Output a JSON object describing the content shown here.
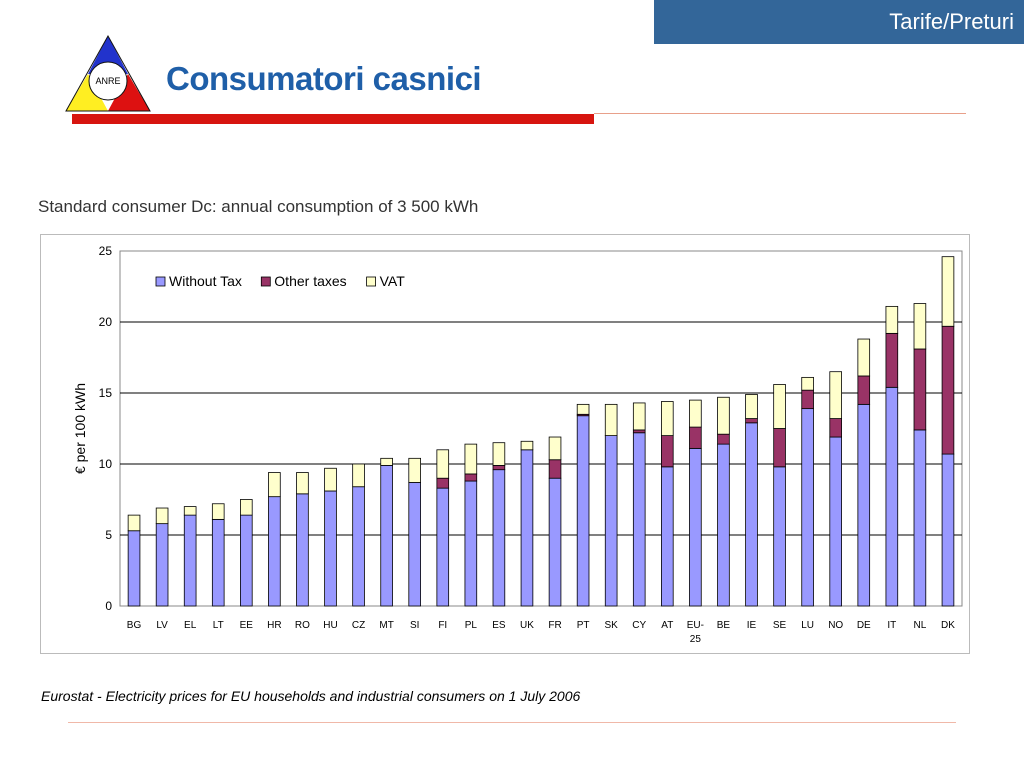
{
  "header": {
    "section_tab": "Tarife/Preturi",
    "logo_text": "ANRE",
    "title": "Consumatori casnici"
  },
  "chart_heading": "Standard consumer Dc: annual consumption of 3 500 kWh",
  "source_note": "Eurostat - Electricity prices for EU households and industrial consumers on 1 July 2006",
  "colors": {
    "tab_bg": "#336699",
    "title": "#1f5fa8",
    "accent_red": "#d7150f",
    "without_tax": "#9999ff",
    "other_taxes": "#993366",
    "vat": "#ffffcc"
  },
  "chart_data": {
    "type": "bar",
    "stacked": true,
    "title": "",
    "xlabel": "",
    "ylabel": "€ per 100 kWh",
    "ylim": [
      0,
      25
    ],
    "yticks": [
      0,
      5,
      10,
      15,
      20,
      25
    ],
    "grid": true,
    "legend_position": "top-left",
    "categories": [
      "BG",
      "LV",
      "EL",
      "LT",
      "EE",
      "HR",
      "RO",
      "HU",
      "CZ",
      "MT",
      "SI",
      "FI",
      "PL",
      "ES",
      "UK",
      "FR",
      "PT",
      "SK",
      "CY",
      "AT",
      "EU-25",
      "BE",
      "IE",
      "SE",
      "LU",
      "NO",
      "DE",
      "IT",
      "NL",
      "DK"
    ],
    "series": [
      {
        "name": "Without Tax",
        "color": "#9999ff",
        "values": [
          5.3,
          5.8,
          6.4,
          6.1,
          6.4,
          7.7,
          7.9,
          8.1,
          8.4,
          9.9,
          8.7,
          8.3,
          8.8,
          9.6,
          11.0,
          9.0,
          13.4,
          12.0,
          12.2,
          9.8,
          11.1,
          11.4,
          12.9,
          9.8,
          13.9,
          11.9,
          14.2,
          15.4,
          12.4,
          10.7
        ]
      },
      {
        "name": "Other taxes",
        "color": "#993366",
        "values": [
          0,
          0,
          0,
          0,
          0,
          0,
          0,
          0,
          0,
          0,
          0,
          0.7,
          0.5,
          0.3,
          0,
          1.3,
          0.1,
          0,
          0.2,
          2.2,
          1.5,
          0.7,
          0.3,
          2.7,
          1.3,
          1.3,
          2.0,
          3.8,
          5.7,
          9.0
        ]
      },
      {
        "name": "VAT",
        "color": "#ffffcc",
        "values": [
          1.1,
          1.1,
          0.6,
          1.1,
          1.1,
          1.7,
          1.5,
          1.6,
          1.6,
          0.5,
          1.7,
          2.0,
          2.1,
          1.6,
          0.6,
          1.6,
          0.7,
          2.2,
          1.9,
          2.4,
          1.9,
          2.6,
          1.7,
          3.1,
          0.9,
          3.3,
          2.6,
          1.9,
          3.2,
          4.9
        ]
      }
    ]
  }
}
